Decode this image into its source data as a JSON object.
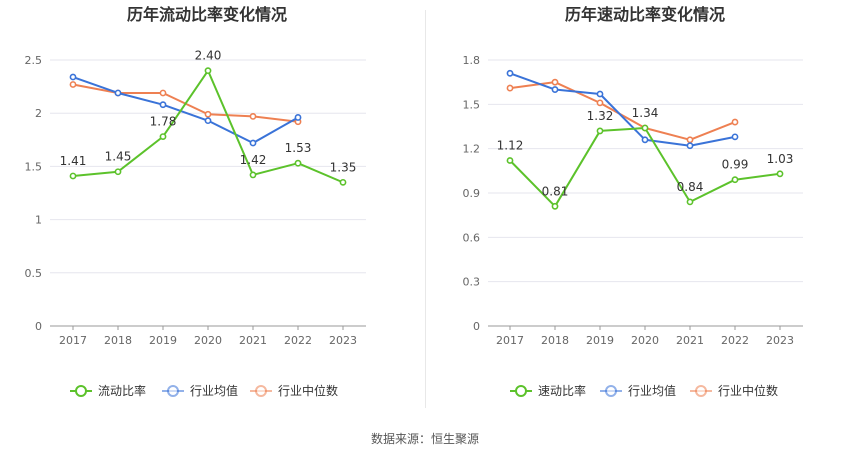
{
  "source": "数据来源：恒生聚源",
  "colors": {
    "company": "#5cc22b",
    "industry_avg": "#3a73d8",
    "industry_median": "#ee8052",
    "grid": "#e6e6ee",
    "axis": "#999999",
    "tick_text": "#666666",
    "title": "#333333"
  },
  "chart_data": [
    {
      "type": "line",
      "title": "历年流动比率变化情况",
      "categories": [
        "2017",
        "2018",
        "2019",
        "2020",
        "2021",
        "2022",
        "2023"
      ],
      "ylim": [
        0,
        2.5
      ],
      "yticks": [
        "0",
        "0.5",
        "1",
        "1.5",
        "2",
        "2.5"
      ],
      "ytick_values": [
        0,
        0.5,
        1,
        1.5,
        2,
        2.5
      ],
      "grid": true,
      "legend_position": "bottom-center",
      "series": [
        {
          "name": "流动比率",
          "key": "company",
          "values": [
            1.41,
            1.45,
            1.78,
            2.4,
            1.42,
            1.53,
            1.35
          ],
          "labels": [
            "1.41",
            "1.45",
            "1.78",
            "2.40",
            "1.42",
            "1.53",
            "1.35"
          ]
        },
        {
          "name": "行业均值",
          "key": "industry_avg",
          "values": [
            2.34,
            2.19,
            2.08,
            1.93,
            1.72,
            1.96,
            null
          ]
        },
        {
          "name": "行业中位数",
          "key": "industry_median",
          "values": [
            2.27,
            2.19,
            2.19,
            1.99,
            1.97,
            1.92,
            null
          ]
        }
      ]
    },
    {
      "type": "line",
      "title": "历年速动比率变化情况",
      "categories": [
        "2017",
        "2018",
        "2019",
        "2020",
        "2021",
        "2022",
        "2023"
      ],
      "ylim": [
        0,
        1.8
      ],
      "yticks": [
        "0",
        "0.3",
        "0.6",
        "0.9",
        "1.2",
        "1.5",
        "1.8"
      ],
      "ytick_values": [
        0,
        0.3,
        0.6,
        0.9,
        1.2,
        1.5,
        1.8
      ],
      "grid": true,
      "legend_position": "bottom-center",
      "series": [
        {
          "name": "速动比率",
          "key": "company",
          "values": [
            1.12,
            0.81,
            1.32,
            1.34,
            0.84,
            0.99,
            1.03
          ],
          "labels": [
            "1.12",
            "0.81",
            "1.32",
            "1.34",
            "0.84",
            "0.99",
            "1.03"
          ]
        },
        {
          "name": "行业均值",
          "key": "industry_avg",
          "values": [
            1.71,
            1.6,
            1.57,
            1.26,
            1.22,
            1.28,
            null
          ]
        },
        {
          "name": "行业中位数",
          "key": "industry_median",
          "values": [
            1.61,
            1.65,
            1.51,
            1.34,
            1.26,
            1.38,
            null
          ]
        }
      ]
    }
  ]
}
